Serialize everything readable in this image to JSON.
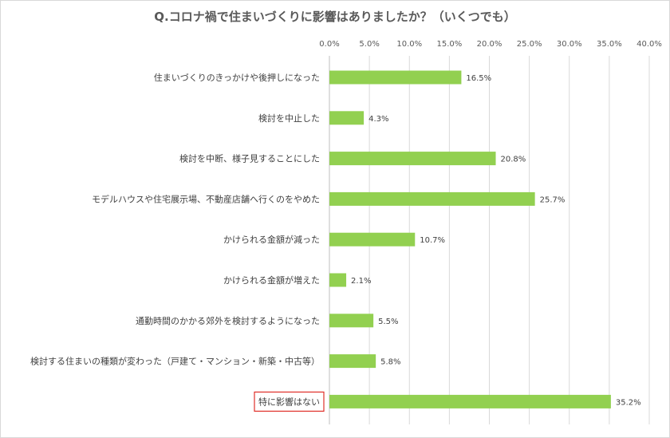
{
  "chart_data": {
    "type": "bar",
    "orientation": "horizontal",
    "title": "Q.コロナ禍で住まいづくりに影響はありましたか？（いくつでも）",
    "xlim": [
      0,
      40
    ],
    "ticks": [
      "0.0%",
      "5.0%",
      "10.0%",
      "15.0%",
      "20.0%",
      "25.0%",
      "30.0%",
      "35.0%",
      "40.0%"
    ],
    "tick_values": [
      0,
      5,
      10,
      15,
      20,
      25,
      30,
      35,
      40
    ],
    "categories": [
      "住まいづくりのきっかけや後押しになった",
      "検討を中止した",
      "検討を中断、様子見することにした",
      "モデルハウスや住宅展示場、不動産店舗へ行くのをやめた",
      "かけられる金額が減った",
      "かけられる金額が増えた",
      "通勤時間のかかる郊外を検討するようになった",
      "検討する住まいの種類が変わった（戸建て・マンション・新築・中古等）",
      "特に影響はない"
    ],
    "values": [
      16.5,
      4.3,
      20.8,
      25.7,
      10.7,
      2.1,
      5.5,
      5.8,
      35.2
    ],
    "value_labels": [
      "16.5%",
      "4.3%",
      "20.8%",
      "25.7%",
      "10.7%",
      "2.1%",
      "5.5%",
      "5.8%",
      "35.2%"
    ],
    "highlighted_category": "特に影響はない",
    "bar_color": "#92d050",
    "grid_color": "#d9d9d9",
    "highlight_border_color": "#e0302a",
    "grid": true,
    "legend": "none"
  }
}
